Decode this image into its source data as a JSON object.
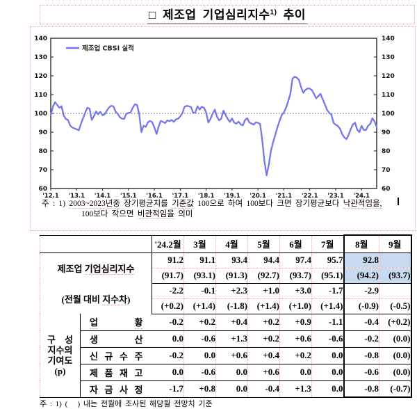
{
  "title": {
    "main": "□ 제조업 기업심리지수",
    "sup": "1)",
    "tail": " 추이"
  },
  "colors": {
    "line": "#7575ec",
    "highlight": "#c9daf0",
    "dotted_box": "#f2a0a0"
  },
  "chart_data": {
    "type": "line",
    "legend": "제조업 CBSI 실적",
    "ylim": [
      60,
      140
    ],
    "ytick_step": 10,
    "grid": false,
    "reference_line": 100,
    "legend_position": "top-left-inside",
    "line_color": "#7575ec",
    "xticks": [
      "'12.1",
      "'13.1",
      "'14.1",
      "'15.1",
      "'16.1",
      "'17.1",
      "'18.1",
      "'19.1",
      "'20.1",
      "'21.1",
      "'22.1",
      "'23.1",
      "'24.1"
    ],
    "x_start": "2012-01",
    "x_end": "2024-08",
    "values": [
      99,
      103.5,
      106,
      104.5,
      103,
      103.8,
      99,
      97,
      96.5,
      93.5,
      92.5,
      92,
      91.5,
      91,
      94.5,
      97.5,
      100.5,
      103,
      102.5,
      96.5,
      98.5,
      101,
      99.5,
      100.8,
      99,
      99.5,
      101.5,
      103.2,
      104,
      103.8,
      101,
      99.8,
      98,
      97.2,
      97,
      99.8,
      100.2,
      100.5,
      103,
      104.8,
      104.5,
      99.5,
      90,
      93.5,
      92.8,
      95.2,
      96,
      95.3,
      92.5,
      89,
      93,
      96,
      95.5,
      94.8,
      96.3,
      95.8,
      96.5,
      95.5,
      96.8,
      97.2,
      98.5,
      100.2,
      103.5,
      104,
      103.8,
      103.4,
      100.2,
      100.6,
      103.8,
      102,
      103.5,
      103,
      100.5,
      95.2,
      97,
      99.8,
      102,
      98.2,
      96.3,
      97.2,
      101.5,
      99.2,
      97,
      95.5,
      97.3,
      95,
      94.5,
      95.6,
      94.2,
      93.6,
      96.4,
      97.5,
      95.2,
      94.6,
      94,
      95.2,
      95,
      94.3,
      85.5,
      74.5,
      67,
      72.5,
      80,
      84.5,
      88.5,
      92.5,
      96,
      99,
      100.5,
      103,
      106.5,
      110.5,
      118.5,
      119.5,
      119,
      117.8,
      113.8,
      111,
      112.5,
      113.3,
      113.2,
      112.4,
      110.3,
      108,
      109.3,
      110.4,
      107.4,
      104.8,
      101.8,
      100.3,
      99.3,
      95,
      94,
      93.3,
      91.9,
      89,
      87.2,
      86.3,
      88.6,
      91.6,
      94.1,
      95,
      91.3,
      90,
      93.4,
      91.2,
      91.1,
      93.4,
      94.4,
      97.4,
      95.7,
      92.8
    ],
    "note_line1": [
      {
        "t": "주 : 1) "
      },
      {
        "t": "2003~2023년중",
        "u": true
      },
      {
        "t": " 장기평균치를 "
      },
      {
        "t": "기준값",
        "u": true
      },
      {
        "t": " 100으로 하여 100보다 크면 장기평균보다 "
      },
      {
        "t": "낙관적임을,",
        "u": true
      }
    ],
    "note_line2": [
      {
        "t": "100보다 작으면 "
      },
      {
        "t": "비관적임을",
        "u": true
      },
      {
        "t": " 의미"
      }
    ]
  },
  "table": {
    "columns": [
      "'24.2월",
      "3월",
      "4월",
      "5월",
      "6월",
      "7월",
      "8월",
      "9월"
    ],
    "highlight_columns": [
      "8월",
      "9월"
    ],
    "rows": {
      "index": {
        "label_pre": "제조업 ",
        "label_u": "기업심리지수",
        "main": [
          "91.2",
          "91.1",
          "93.4",
          "94.4",
          "97.4",
          "95.7",
          "92.8",
          ""
        ],
        "sub": [
          "(91.7)",
          "(93.1)",
          "(91.3)",
          "(92.7)",
          "(93.7)",
          "(95.1)",
          "(94.2)",
          "(93.7)"
        ]
      },
      "mom": {
        "label_pre": "(전월 대비 ",
        "label_u": "지수차",
        "label_post": ")",
        "main": [
          "-2.2",
          "-0.1",
          "+2.3",
          "+1.0",
          "+3.0",
          "-1.7",
          "-2.9",
          ""
        ],
        "sub": [
          "(+0.2)",
          "(+1.4)",
          "(-1.8)",
          "(+1.4)",
          "(+1.0)",
          "(+1.4)",
          "(-0.9)",
          "(-0.5)"
        ]
      },
      "contrib": {
        "group_label_lines": [
          "구 성",
          "지수의",
          "기여도",
          "(p)"
        ],
        "items": [
          {
            "label": "업 황",
            "u": true,
            "values": [
              "-0.2",
              "+0.2",
              "+0.4",
              "+0.2",
              "+0.9",
              "-1.1",
              "-0.4",
              "(+0.2)"
            ]
          },
          {
            "label": "생 산",
            "u": false,
            "values": [
              "0.0",
              "-0.6",
              "+1.3",
              "+0.2",
              "+0.6",
              "-0.6",
              "-0.2",
              "(0.0)"
            ]
          },
          {
            "label": "신 규 수 주",
            "u": false,
            "values": [
              "-0.2",
              "0.0",
              "+0.6",
              "+0.4",
              "+0.2",
              "0.0",
              "-0.8",
              "(0.0)"
            ]
          },
          {
            "label": "제 품 재 고",
            "u": false,
            "values": [
              "0.0",
              "-0.6",
              "0.0",
              "+0.6",
              "0.0",
              "0.0",
              "-0.6",
              "(0.0)"
            ]
          },
          {
            "label": "자 금 사 정",
            "u": false,
            "values": [
              "-1.7",
              "+0.8",
              "0.0",
              "-0.4",
              "+1.3",
              "0.0",
              "-0.8",
              "(-0.7)"
            ]
          }
        ]
      }
    },
    "footnote": "주 : 1) (   ) 내는 전월에 조사된 해당월 전망치 기준"
  }
}
